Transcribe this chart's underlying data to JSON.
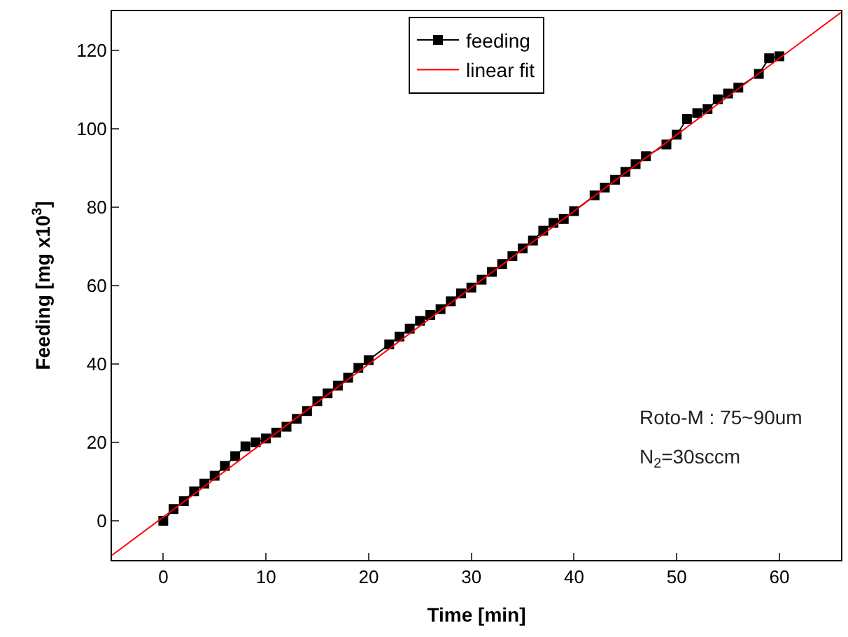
{
  "chart_data": {
    "type": "line",
    "xlabel": "Time [min]",
    "ylabel": "Feeding [mg x10$^{3}$]",
    "xlim": [
      -5,
      66
    ],
    "ylim": [
      -10,
      130
    ],
    "xticks": [
      0,
      10,
      20,
      30,
      40,
      50,
      60
    ],
    "yticks": [
      0,
      20,
      40,
      60,
      80,
      100,
      120
    ],
    "legend": "top",
    "line_style": "solid",
    "series": [
      {
        "name": "feeding",
        "marker": "square",
        "color": "#000000",
        "x": [
          0,
          1,
          2,
          3,
          4,
          5,
          6,
          7,
          8,
          9,
          10,
          11,
          12,
          13,
          14,
          15,
          16,
          17,
          18,
          19,
          20,
          22,
          23,
          24,
          25,
          26,
          27,
          28,
          29,
          30,
          31,
          32,
          33,
          34,
          35,
          36,
          37,
          38,
          39,
          40,
          42,
          43,
          44,
          45,
          46,
          47,
          49,
          50,
          51,
          52,
          53,
          54,
          55,
          56,
          58,
          59,
          60
        ],
        "values": [
          0,
          3,
          5,
          7.5,
          9.5,
          11.5,
          14,
          16.5,
          19,
          20,
          21,
          22.5,
          24,
          26,
          28,
          30.5,
          32.5,
          34.5,
          36.5,
          39,
          41,
          45,
          47,
          49,
          51,
          52.5,
          54,
          56,
          58,
          59.5,
          61.5,
          63.5,
          65.5,
          67.5,
          69.5,
          71.5,
          74,
          76,
          77,
          79,
          83,
          85,
          87,
          89,
          91,
          93,
          96,
          98.5,
          102.5,
          104,
          105,
          107.5,
          109,
          110.5,
          114,
          118,
          118.5
        ]
      },
      {
        "name": "linear fit",
        "type": "line",
        "marker": "none",
        "color": "#ff0000",
        "x": [
          -5,
          66
        ],
        "values": [
          -8.8,
          129.7
        ]
      }
    ],
    "annotations": [
      {
        "text": "Roto-M : 75~90um"
      },
      {
        "text": "N$_{2}$=30sccm"
      }
    ]
  }
}
